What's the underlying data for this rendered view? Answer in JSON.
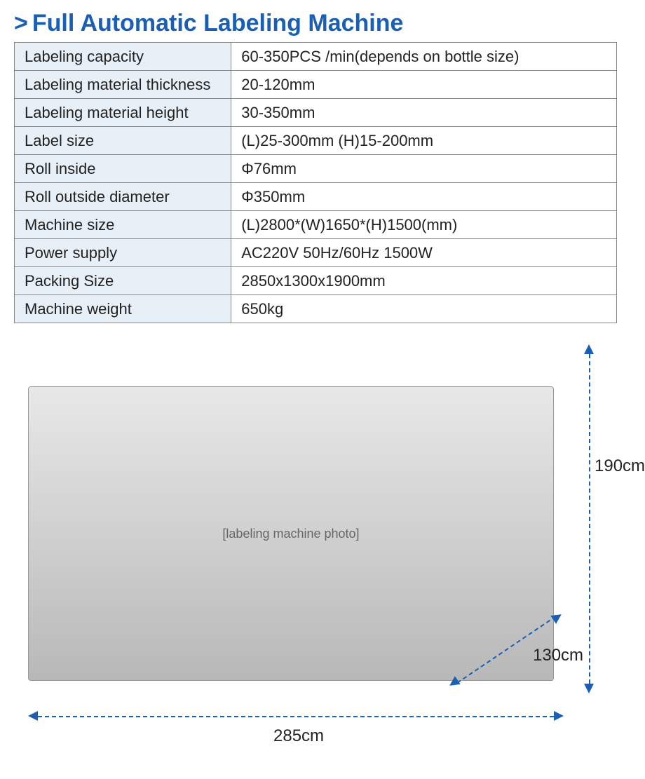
{
  "heading": {
    "caret": ">",
    "text": "Full Automatic Labeling Machine",
    "color": "#1a5fb4",
    "fontsize": 34
  },
  "table": {
    "border_color": "#888888",
    "label_bg": "#e8f0f7",
    "value_bg": "#ffffff",
    "text_color": "#222222",
    "fontsize": 22,
    "label_col_width_pct": 36,
    "rows": [
      {
        "label": "Labeling capacity",
        "value": "60-350PCS /min(depends on bottle size)"
      },
      {
        "label": "Labeling material thickness",
        "value": "20-120mm"
      },
      {
        "label": "Labeling material height",
        "value": "30-350mm"
      },
      {
        "label": "Label size",
        "value": "(L)25-300mm   (H)15-200mm"
      },
      {
        "label": "Roll inside",
        "value": "Φ76mm"
      },
      {
        "label": "Roll outside diameter",
        "value": "Φ350mm"
      },
      {
        "label": "Machine size",
        "value": "(L)2800*(W)1650*(H)1500(mm)"
      },
      {
        "label": "Power supply",
        "value": "AC220V 50Hz/60Hz  1500W"
      },
      {
        "label": "Packing Size",
        "value": "2850x1300x1900mm"
      },
      {
        "label": "Machine weight",
        "value": "650kg"
      }
    ]
  },
  "diagram": {
    "dimension_color": "#1a5fb4",
    "label_color": "#222222",
    "label_fontsize": 24,
    "dimensions": {
      "width": "285cm",
      "height": "190cm",
      "depth": "130cm"
    },
    "machine_placeholder_text": "[labeling machine photo]"
  }
}
